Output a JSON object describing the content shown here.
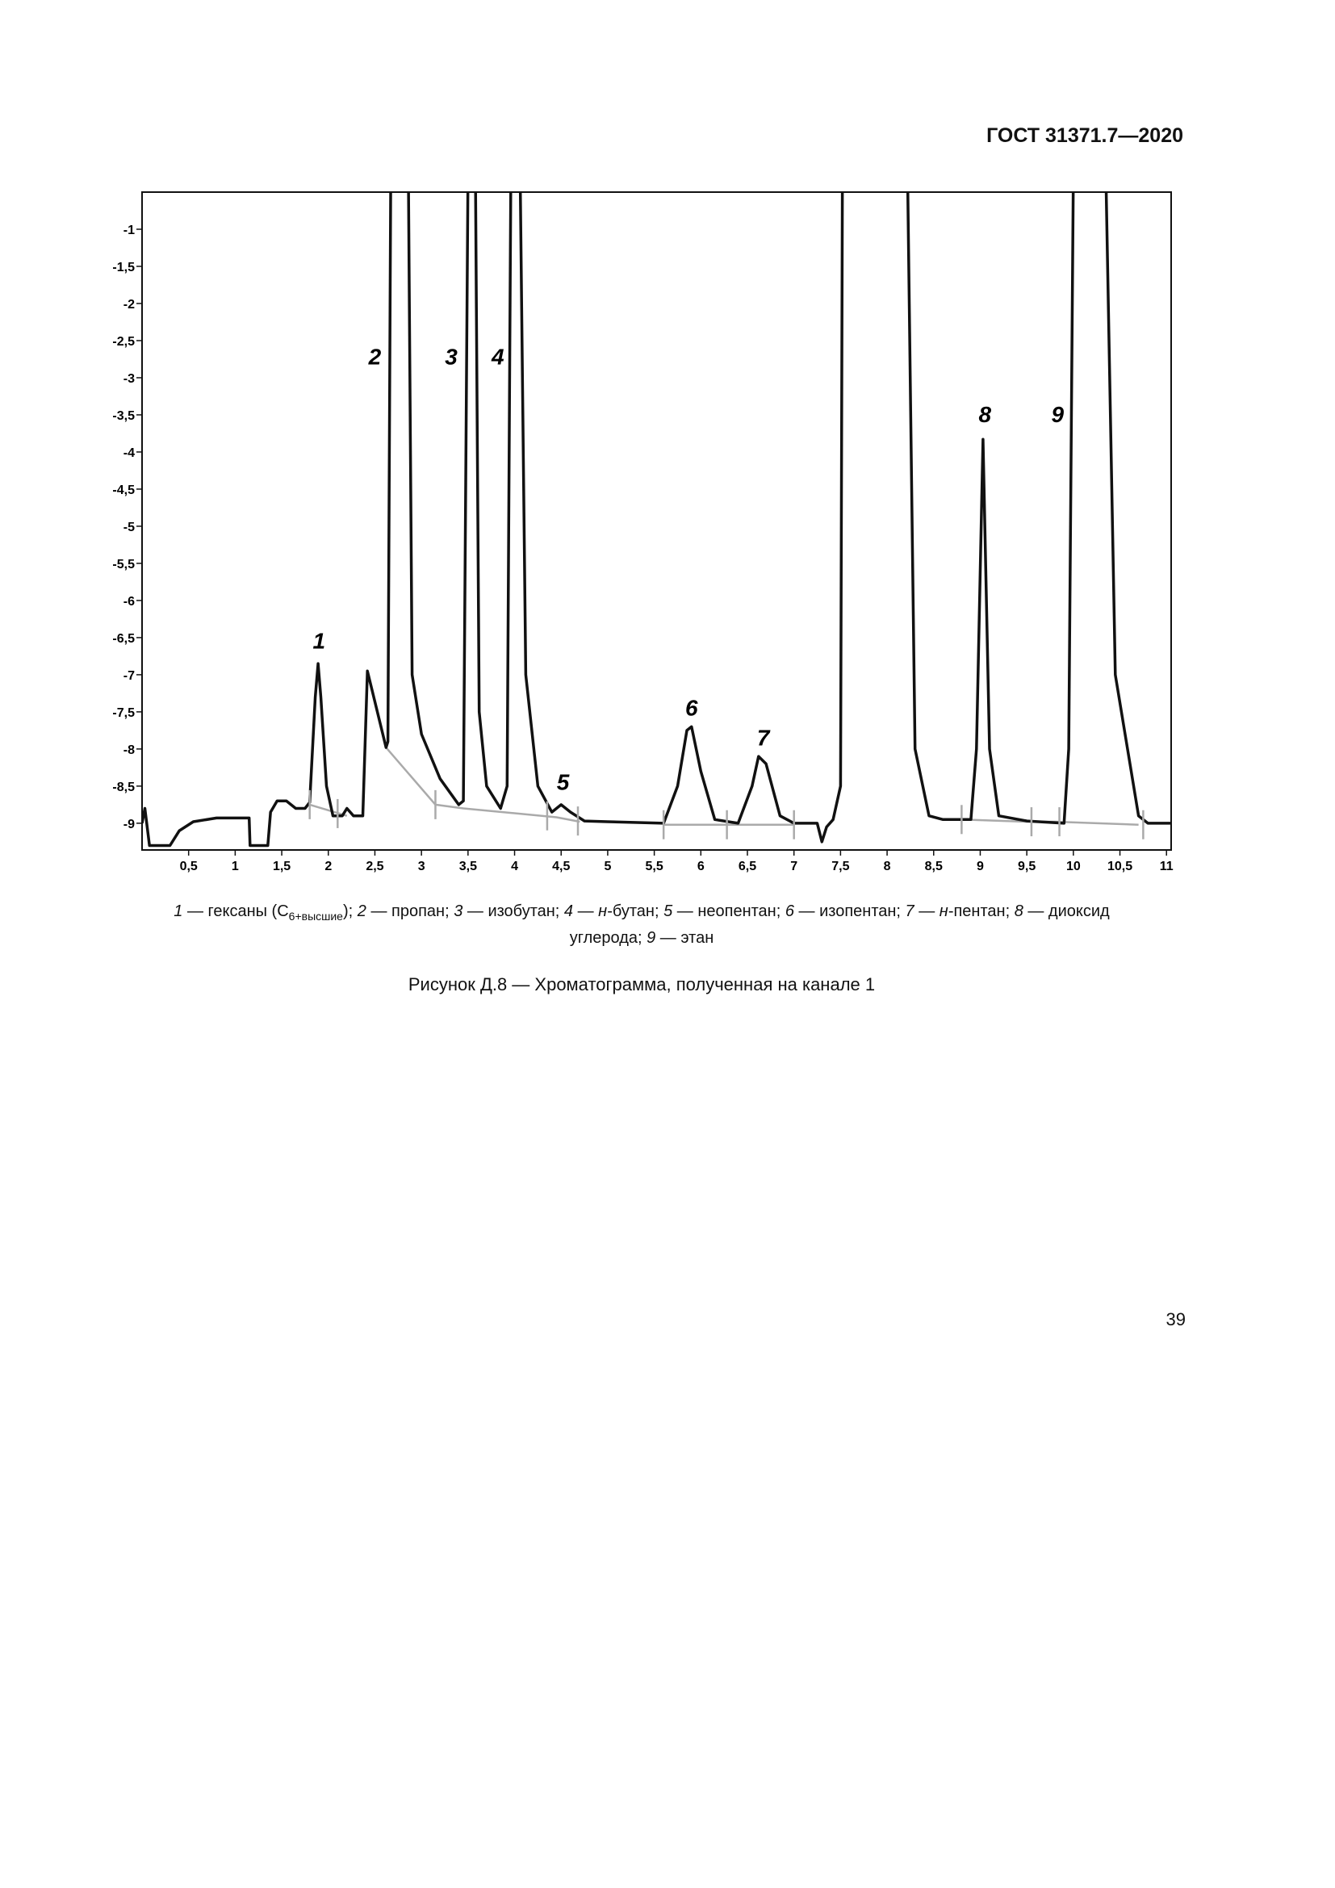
{
  "header": {
    "standard": "ГОСТ 31371.7—2020"
  },
  "chart_data": {
    "type": "line",
    "xlim": [
      0,
      11.05
    ],
    "ylim": [
      -9.36,
      -0.5
    ],
    "xticks": [
      {
        "value": 0.5,
        "label": "0,5"
      },
      1,
      {
        "value": 1.5,
        "label": "1,5"
      },
      2,
      {
        "value": 2.5,
        "label": "2,5"
      },
      3,
      {
        "value": 3.5,
        "label": "3,5"
      },
      4,
      {
        "value": 4.5,
        "label": "4,5"
      },
      5,
      {
        "value": 5.5,
        "label": "5,5"
      },
      6,
      {
        "value": 6.5,
        "label": "6,5"
      },
      7,
      {
        "value": 7.5,
        "label": "7,5"
      },
      8,
      {
        "value": 8.5,
        "label": "8,5"
      },
      9,
      {
        "value": 9.5,
        "label": "9,5"
      },
      10,
      {
        "value": 10.5,
        "label": "10,5"
      },
      11
    ],
    "yticks": [
      -1,
      {
        "value": -1.5,
        "label": "-1,5"
      },
      -2,
      {
        "value": -2.5,
        "label": "-2,5"
      },
      -3,
      {
        "value": -3.5,
        "label": "-3,5"
      },
      -4,
      {
        "value": -4.5,
        "label": "-4,5"
      },
      -5,
      {
        "value": -5.5,
        "label": "-5,5"
      },
      -6,
      {
        "value": -6.5,
        "label": "-6,5"
      },
      -7,
      {
        "value": -7.5,
        "label": "-7,5"
      },
      -8,
      {
        "value": -8.5,
        "label": "-8,5"
      },
      -9
    ],
    "series": [
      {
        "color": "#111111",
        "x": [
          0.0,
          0.03,
          0.08,
          0.3,
          0.4,
          0.55,
          0.8,
          1.15,
          1.16,
          1.35,
          1.38,
          1.45,
          1.55,
          1.65,
          1.75,
          1.8,
          1.86,
          1.89,
          1.92,
          1.98,
          2.05,
          2.15,
          2.2,
          2.27,
          2.37,
          2.42,
          2.62,
          2.64,
          2.67,
          2.86,
          2.9,
          3.0,
          3.2,
          3.4,
          3.45,
          3.5,
          3.58,
          3.62,
          3.7,
          3.85,
          3.92,
          3.96,
          4.06,
          4.12,
          4.25,
          4.4,
          4.5,
          4.6,
          4.75,
          5.0,
          5.6,
          5.75,
          5.85,
          5.9,
          6.0,
          6.15,
          6.4,
          6.55,
          6.62,
          6.7,
          6.85,
          7.0,
          7.25,
          7.3,
          7.35,
          7.42,
          7.5,
          7.52,
          8.22,
          8.3,
          8.45,
          8.6,
          8.9,
          8.96,
          9.03,
          9.1,
          9.2,
          9.5,
          9.9,
          9.95,
          10.0,
          10.35,
          10.45,
          10.7,
          10.8,
          11.05
        ],
        "values": [
          -9.0,
          -8.8,
          -9.3,
          -9.3,
          -9.1,
          -8.98,
          -8.93,
          -8.93,
          -9.3,
          -9.3,
          -8.85,
          -8.7,
          -8.7,
          -8.8,
          -8.8,
          -8.72,
          -7.3,
          -6.85,
          -7.3,
          -8.5,
          -8.9,
          -8.9,
          -8.8,
          -8.9,
          -8.9,
          -6.95,
          -7.98,
          -7.9,
          -0.3,
          -0.3,
          -7.0,
          -7.8,
          -8.4,
          -8.75,
          -8.7,
          -0.3,
          -0.3,
          -7.5,
          -8.5,
          -8.8,
          -8.5,
          -0.3,
          -0.3,
          -7.0,
          -8.5,
          -8.85,
          -8.75,
          -8.85,
          -8.97,
          -8.98,
          -9.0,
          -8.5,
          -7.75,
          -7.7,
          -8.3,
          -8.95,
          -9.0,
          -8.5,
          -8.1,
          -8.2,
          -8.9,
          -9.0,
          -9.0,
          -9.25,
          -9.05,
          -8.95,
          -8.5,
          -0.3,
          -0.3,
          -8.0,
          -8.9,
          -8.95,
          -8.95,
          -8.0,
          -3.83,
          -8.0,
          -8.9,
          -8.97,
          -9.0,
          -8.0,
          -0.3,
          -0.3,
          -7.0,
          -8.9,
          -9.0,
          -9.0
        ]
      },
      {
        "color": "#aaaaaa",
        "x": [
          1.8,
          2.2,
          2.4,
          2.62,
          3.15,
          3.45,
          4.45,
          4.7,
          5.2,
          5.6,
          7.0,
          8.0,
          8.8,
          9.5,
          9.8,
          10.7
        ],
        "values": [
          -8.75,
          -8.9,
          null,
          -7.98,
          -8.75,
          -8.8,
          -8.92,
          -8.98,
          null,
          -9.02,
          -9.02,
          null,
          -8.95,
          -8.98,
          -8.98,
          -9.02
        ]
      }
    ],
    "markers": [
      {
        "x": 1.8,
        "y": -8.75
      },
      {
        "x": 2.1,
        "y": -8.87
      },
      {
        "x": 3.15,
        "y": -8.75
      },
      {
        "x": 4.35,
        "y": -8.9
      },
      {
        "x": 4.68,
        "y": -8.97
      },
      {
        "x": 5.6,
        "y": -9.02
      },
      {
        "x": 6.28,
        "y": -9.02
      },
      {
        "x": 7.0,
        "y": -9.02
      },
      {
        "x": 8.8,
        "y": -8.95
      },
      {
        "x": 9.55,
        "y": -8.98
      },
      {
        "x": 9.85,
        "y": -8.98
      },
      {
        "x": 10.75,
        "y": -9.02
      }
    ],
    "annotations": [
      {
        "text": "1",
        "x": 1.9,
        "y": -6.65
      },
      {
        "text": "2",
        "x": 2.5,
        "y": -2.82
      },
      {
        "text": "3",
        "x": 3.32,
        "y": -2.82
      },
      {
        "text": "4",
        "x": 3.82,
        "y": -2.82
      },
      {
        "text": "5",
        "x": 4.52,
        "y": -8.55
      },
      {
        "text": "6",
        "x": 5.9,
        "y": -7.55
      },
      {
        "text": "7",
        "x": 6.67,
        "y": -7.95
      },
      {
        "text": "8",
        "x": 9.05,
        "y": -3.6
      },
      {
        "text": "9",
        "x": 9.83,
        "y": -3.6
      }
    ]
  },
  "legend": {
    "lines": [
      [
        {
          "text": "1",
          "italic": true
        },
        {
          "text": " — гексаны (C"
        },
        {
          "text": "6+высшие",
          "sub": true
        },
        {
          "text": "); "
        },
        {
          "text": "2",
          "italic": true
        },
        {
          "text": " — пропан; "
        },
        {
          "text": "3",
          "italic": true
        },
        {
          "text": " — изобутан; "
        },
        {
          "text": "4",
          "italic": true
        },
        {
          "text": " — "
        },
        {
          "text": "н",
          "italic": true
        },
        {
          "text": "-бутан; "
        },
        {
          "text": "5",
          "italic": true
        },
        {
          "text": " — неопентан; "
        },
        {
          "text": "6",
          "italic": true
        },
        {
          "text": " — изопентан; "
        },
        {
          "text": "7",
          "italic": true
        },
        {
          "text": " — "
        },
        {
          "text": "н",
          "italic": true
        },
        {
          "text": "-пентан; "
        },
        {
          "text": "8",
          "italic": true
        },
        {
          "text": " — диоксид"
        }
      ],
      [
        {
          "text": "углерода; "
        },
        {
          "text": "9",
          "italic": true
        },
        {
          "text": " — этан"
        }
      ]
    ]
  },
  "caption": "Рисунок Д.8 — Хроматограмма, полученная на канале 1",
  "page_number": "39"
}
